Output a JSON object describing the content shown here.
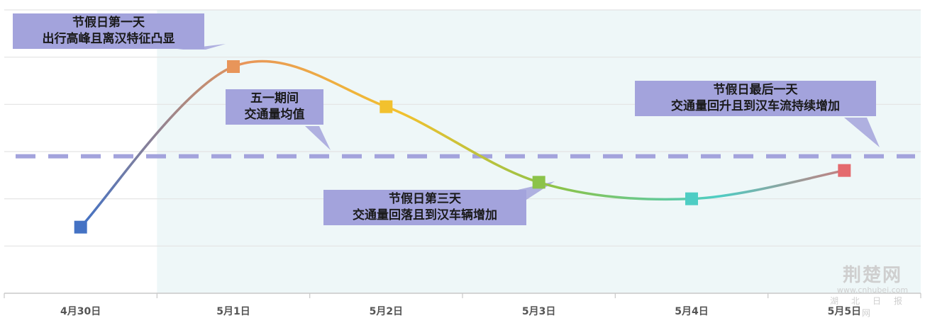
{
  "chart_data": {
    "type": "line",
    "title": "",
    "xlabel": "",
    "ylabel": "",
    "categories": [
      "4月30日",
      "5月1日",
      "5月2日",
      "5月3日",
      "5月4日",
      "5月5日"
    ],
    "series": [
      {
        "values": [
          1.4,
          4.8,
          3.95,
          2.35,
          2.0,
          2.6
        ]
      }
    ],
    "point_colors": [
      "#4472c4",
      "#e8955a",
      "#f2c12e",
      "#8bc34a",
      "#4ecdc4",
      "#e46a6e"
    ],
    "reference_line": {
      "value": 2.9,
      "color": "#a3a3dc"
    },
    "ylim": [
      0,
      6
    ],
    "grid": true,
    "holiday_shade_color": "#eef7f8",
    "annotations": [
      {
        "id": "day1",
        "lines": [
          "节假日第一天",
          "出行高峰且离汉特征凸显"
        ]
      },
      {
        "id": "avg",
        "lines": [
          "五一期间",
          "交通量均值"
        ]
      },
      {
        "id": "day3",
        "lines": [
          "节假日第三天",
          "交通量回落且到汉车辆增加"
        ]
      },
      {
        "id": "last",
        "lines": [
          "节假日最后一天",
          "交通量回升且到汉车流持续增加"
        ]
      }
    ]
  },
  "watermark": {
    "logo": "荆楚网",
    "url": "www.cnhubei.com",
    "name": "湖北日报网"
  }
}
